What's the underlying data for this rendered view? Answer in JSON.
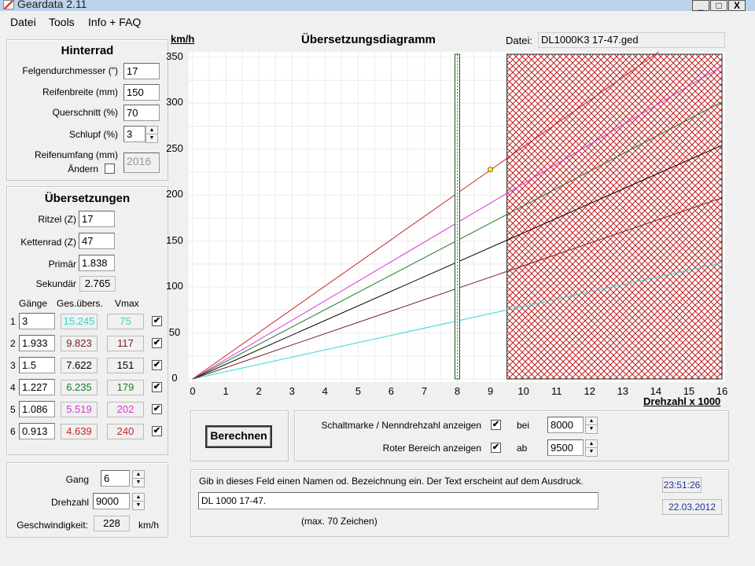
{
  "window": {
    "title": "Geardata 2.11",
    "min": "_",
    "max": "□",
    "close": "X"
  },
  "menu": [
    {
      "label": "Datei"
    },
    {
      "label": "Tools"
    },
    {
      "label": "Info + FAQ"
    }
  ],
  "hinterrad": {
    "title": "Hinterrad",
    "felgen_label": "Felgendurchmesser (\")",
    "felgen": "17",
    "breite_label": "Reifenbreite (mm)",
    "breite": "150",
    "quer_label": "Querschnitt (%)",
    "quer": "70",
    "schlupf_label": "Schlupf (%)",
    "schlupf": "3",
    "umfang_label": "Reifenumfang (mm)",
    "aendern_label": "Ändern",
    "umfang": "2016"
  },
  "uebers": {
    "title": "Übersetzungen",
    "ritzel_label": "Ritzel (Z)",
    "ritzel": "17",
    "kettenrad_label": "Kettenrad (Z)",
    "kettenrad": "47",
    "primaer_label": "Primär",
    "primaer": "1.838",
    "sekundaer_label": "Sekundär",
    "sekundaer": "2.765",
    "col_gaenge": "Gänge",
    "col_ges": "Ges.übers.",
    "col_vmax": "Vmax",
    "gears": [
      {
        "n": "1",
        "ratio": "3",
        "total": "15.245",
        "vmax": "75",
        "color": "#33d6d6",
        "checked": "✔"
      },
      {
        "n": "2",
        "ratio": "1.933",
        "total": "9.823",
        "vmax": "117",
        "color": "#7a2020",
        "checked": "✔"
      },
      {
        "n": "3",
        "ratio": "1.5",
        "total": "7.622",
        "vmax": "151",
        "color": "#000000",
        "checked": "✔"
      },
      {
        "n": "4",
        "ratio": "1.227",
        "total": "6.235",
        "vmax": "179",
        "color": "#1f7a2a",
        "checked": "✔"
      },
      {
        "n": "5",
        "ratio": "1.086",
        "total": "5.519",
        "vmax": "202",
        "color": "#d838d8",
        "checked": "✔"
      },
      {
        "n": "6",
        "ratio": "0.913",
        "total": "4.639",
        "vmax": "240",
        "color": "#c82828",
        "checked": "✔"
      }
    ]
  },
  "calc": {
    "gang_label": "Gang",
    "gang": "6",
    "drehzahl_label": "Drehzahl",
    "drehzahl": "9000",
    "speed_label": "Geschwindigkeit:",
    "speed": "228",
    "unit": "km/h"
  },
  "chart_data": {
    "type": "line",
    "title": "Übersetzungsdiagramm",
    "ylabel": "km/h",
    "xlabel": "Drehzahl x 1000",
    "xlim": [
      0,
      16
    ],
    "ylim": [
      0,
      350
    ],
    "xticks": [
      "0",
      "1",
      "2",
      "3",
      "4",
      "5",
      "6",
      "7",
      "8",
      "9",
      "10",
      "11",
      "12",
      "13",
      "14",
      "15",
      "16"
    ],
    "yticks": [
      "0",
      "50",
      "100",
      "150",
      "200",
      "250",
      "300",
      "350"
    ],
    "series": [
      {
        "name": "1",
        "vmax_at_9500": 75
      },
      {
        "name": "2",
        "vmax_at_9500": 117
      },
      {
        "name": "3",
        "vmax_at_9500": 151
      },
      {
        "name": "4",
        "vmax_at_9500": 179
      },
      {
        "name": "5",
        "vmax_at_9500": 202
      },
      {
        "name": "6",
        "vmax_at_9500": 240
      }
    ],
    "shift_mark_rpm": 8,
    "red_zone_from": 9.5,
    "point": {
      "x": 9,
      "y": 228
    }
  },
  "file": {
    "label": "Datei:",
    "name": "DL1000K3 17-47.ged"
  },
  "options": {
    "berechnen": "Berechnen",
    "schalt_label": "Schaltmarke / Nenndrehzahl anzeigen",
    "schalt_checked": "✔",
    "bei": "bei",
    "bei_val": "8000",
    "rot_label": "Roter Bereich anzeigen",
    "rot_checked": "✔",
    "ab": "ab",
    "ab_val": "9500"
  },
  "note": {
    "label": "Gib in dieses Feld einen Namen od. Bezeichnung ein. Der Text erscheint auf dem Ausdruck.",
    "value": "DL 1000 17-47.",
    "hint": "(max. 70 Zeichen)",
    "time": "23:51:26",
    "date": "22.03.2012"
  }
}
